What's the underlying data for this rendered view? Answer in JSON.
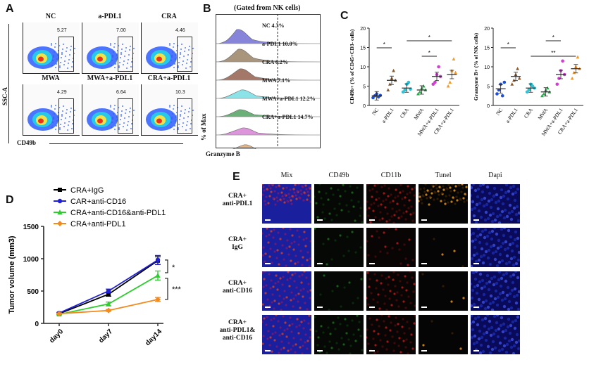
{
  "panels": {
    "a": "A",
    "b": "B",
    "c": "C",
    "d": "D",
    "e": "E"
  },
  "panel_a": {
    "plots": [
      {
        "title": "NC",
        "gate_value": "5.27"
      },
      {
        "title": "a-PDL1",
        "gate_value": "7.00"
      },
      {
        "title": "CRA",
        "gate_value": "4.46"
      },
      {
        "title": "MWA",
        "gate_value": "4.29"
      },
      {
        "title": "MWA+a-PDL1",
        "gate_value": "6.64"
      },
      {
        "title": "CRA+a-PDL1",
        "gate_value": "10.3"
      }
    ],
    "y_axis": "SSC-A",
    "x_axis": "CD49b"
  },
  "panel_b": {
    "title": "(Gated from NK cells)",
    "y_axis": "% of Max",
    "x_axis": "Granzyme B",
    "histograms": [
      {
        "label": "NC 4.3%",
        "color": "#7a78d6"
      },
      {
        "label": "a-PDL1 10.0%",
        "color": "#a08a6e"
      },
      {
        "label": "CRA 6.2%",
        "color": "#9a6a58"
      },
      {
        "label": "MWA 7.1%",
        "color": "#7fe0e6"
      },
      {
        "label": "MWA+a-PDL1 12.2%",
        "color": "#5aa86a"
      },
      {
        "label": "CRA+a-PDL1 14.7%",
        "color": "#d98ad6"
      },
      {
        "label": "",
        "color": "#e0b07a"
      }
    ]
  },
  "chart_data": [
    {
      "type": "scatter",
      "title": "",
      "ylabel": "CD49b+ (% of CD45+CD3- cells)",
      "categories": [
        "NC",
        "a-PDL1",
        "CRA",
        "MWA",
        "MWA+a-PDL1",
        "CRA+a-PDL1"
      ],
      "ylim": [
        0,
        20
      ],
      "yticks": [
        "0",
        "5",
        "10",
        "15",
        "20"
      ],
      "means": [
        2.5,
        6.5,
        4.5,
        4.0,
        7.5,
        8.0
      ],
      "points": [
        [
          2.0,
          2.5,
          3.0,
          2.2,
          2.6
        ],
        [
          4.0,
          5.5,
          7.0,
          9.0,
          6.5
        ],
        [
          3.5,
          4.0,
          5.5,
          6.0,
          4.2
        ],
        [
          3.0,
          3.5,
          4.5,
          5.0,
          4.0
        ],
        [
          5.5,
          6.0,
          8.0,
          10.0,
          7.5
        ],
        [
          5.0,
          6.0,
          9.0,
          12.0,
          8.5
        ]
      ],
      "point_colors": [
        "#1f4fd6",
        "#8b5a2b",
        "#2ec4d6",
        "#2aa84a",
        "#d13fd1",
        "#f29a2e"
      ],
      "significance": [
        {
          "groups": [
            "NC",
            "a-PDL1"
          ],
          "label": "*"
        },
        {
          "groups": [
            "CRA",
            "CRA+a-PDL1"
          ],
          "label": "*"
        },
        {
          "groups": [
            "MWA",
            "MWA+a-PDL1"
          ],
          "label": "*"
        }
      ]
    },
    {
      "type": "scatter",
      "title": "",
      "ylabel": "Granzyme B+ (% of NK cells)",
      "categories": [
        "NC",
        "a-PDL1",
        "CRA",
        "MWA",
        "MWA+a-PDL1",
        "CRA+a-PDL1"
      ],
      "ylim": [
        0,
        20
      ],
      "yticks": [
        "0",
        "5",
        "10",
        "15",
        "20"
      ],
      "means": [
        4.3,
        7.5,
        4.5,
        3.5,
        8.0,
        9.5
      ],
      "points": [
        [
          3.0,
          4.0,
          5.5,
          2.5,
          6.0
        ],
        [
          5.5,
          6.5,
          8.0,
          9.5,
          7.0
        ],
        [
          3.5,
          4.0,
          5.5,
          5.0,
          4.5
        ],
        [
          2.5,
          3.0,
          4.0,
          4.5,
          3.5
        ],
        [
          5.5,
          7.0,
          9.0,
          11.5,
          8.0
        ],
        [
          7.0,
          8.5,
          10.0,
          12.5,
          9.5
        ]
      ],
      "point_colors": [
        "#1f4fd6",
        "#8b5a2b",
        "#2ec4d6",
        "#2aa84a",
        "#d13fd1",
        "#f29a2e"
      ],
      "significance": [
        {
          "groups": [
            "NC",
            "a-PDL1"
          ],
          "label": "*"
        },
        {
          "groups": [
            "MWA",
            "MWA+a-PDL1"
          ],
          "label": "*"
        },
        {
          "groups": [
            "CRA",
            "CRA+a-PDL1"
          ],
          "label": "**"
        }
      ]
    },
    {
      "type": "line",
      "title": "",
      "ylabel": "Tumor volume (mm3)",
      "xlabel": "",
      "categories": [
        "day0",
        "day7",
        "day14"
      ],
      "ylim": [
        0,
        1500
      ],
      "yticks": [
        "0",
        "500",
        "1000",
        "1500"
      ],
      "series": [
        {
          "name": "CRA+IgG",
          "color": "#000000",
          "marker": "square",
          "values": [
            150,
            450,
            970
          ],
          "err": [
            10,
            30,
            60
          ]
        },
        {
          "name": "CAR+anti-CD16",
          "color": "#1f1fd6",
          "marker": "circle",
          "values": [
            160,
            500,
            980
          ],
          "err": [
            10,
            30,
            70
          ]
        },
        {
          "name": "CRA+anti-CD16&anti-PDL1",
          "color": "#2ecc2e",
          "marker": "triangle",
          "values": [
            140,
            300,
            740
          ],
          "err": [
            10,
            30,
            70
          ]
        },
        {
          "name": "CRA+anti-PDL1",
          "color": "#f28a1e",
          "marker": "diamond",
          "values": [
            150,
            200,
            370
          ],
          "err": [
            10,
            15,
            30
          ]
        }
      ],
      "significance": [
        {
          "label": "*"
        },
        {
          "label": "***"
        }
      ]
    }
  ],
  "panel_e": {
    "columns": [
      "Mix",
      "CD49b",
      "CD11b",
      "Tunel",
      "Dapi"
    ],
    "rows": [
      {
        "line1": "CRA+",
        "line2": "anti-PDL1",
        "line3": ""
      },
      {
        "line1": "CRA+",
        "line2": "IgG",
        "line3": ""
      },
      {
        "line1": "CRA+",
        "line2": "anti-CD16",
        "line3": ""
      },
      {
        "line1": "CRA+",
        "line2": "anti-PDL1&",
        "line3": "anti-CD16"
      }
    ]
  }
}
